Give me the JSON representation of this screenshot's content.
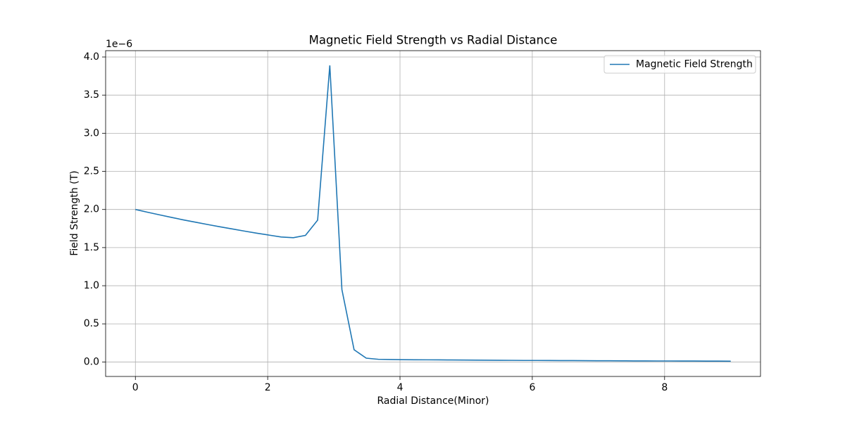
{
  "chart_data": {
    "type": "line",
    "title": "Magnetic Field Strength vs Radial Distance",
    "x_label": "Radial Distance(Minor)",
    "y_label": "Field Strength (T)",
    "y_offset_label": "1e−6",
    "x": [
      0,
      0.184,
      0.367,
      0.551,
      0.735,
      0.918,
      1.102,
      1.286,
      1.469,
      1.653,
      1.837,
      2.02,
      2.204,
      2.388,
      2.571,
      2.755,
      2.939,
      3.122,
      3.306,
      3.49,
      3.673,
      3.857,
      4.041,
      4.224,
      4.408,
      4.592,
      4.776,
      4.959,
      5.143,
      5.327,
      5.51,
      5.694,
      5.878,
      6.061,
      6.245,
      6.429,
      6.612,
      6.796,
      6.98,
      7.163,
      7.347,
      7.531,
      7.714,
      7.898,
      8.082,
      8.265,
      8.449,
      8.633,
      8.816,
      9.0
    ],
    "series": [
      {
        "name": "Magnetic Field Strength",
        "color": "#1f77b4",
        "values": [
          2.0,
          1.964,
          1.929,
          1.895,
          1.862,
          1.832,
          1.801,
          1.772,
          1.744,
          1.716,
          1.689,
          1.664,
          1.639,
          1.63,
          1.66,
          1.86,
          3.89,
          0.95,
          0.16,
          0.05,
          0.035,
          0.032,
          0.03,
          0.029,
          0.028,
          0.027,
          0.026,
          0.025,
          0.024,
          0.023,
          0.022,
          0.021,
          0.02,
          0.02,
          0.019,
          0.018,
          0.018,
          0.017,
          0.016,
          0.016,
          0.015,
          0.014,
          0.014,
          0.013,
          0.013,
          0.012,
          0.012,
          0.011,
          0.011,
          0.01
        ]
      }
    ],
    "xlim": [
      -0.45,
      9.45
    ],
    "ylim": [
      -0.19,
      4.083
    ],
    "xticks": [
      0,
      2,
      4,
      6,
      8
    ],
    "yticks": [
      {
        "value": 0,
        "label": "0.0"
      },
      0.5,
      {
        "value": 1,
        "label": "1.0"
      },
      1.5,
      {
        "value": 2,
        "label": "2.0"
      },
      2.5,
      {
        "value": 3,
        "label": "3.0"
      },
      3.5,
      {
        "value": 4,
        "label": "4.0"
      }
    ],
    "grid": true,
    "legend": "upper right"
  }
}
